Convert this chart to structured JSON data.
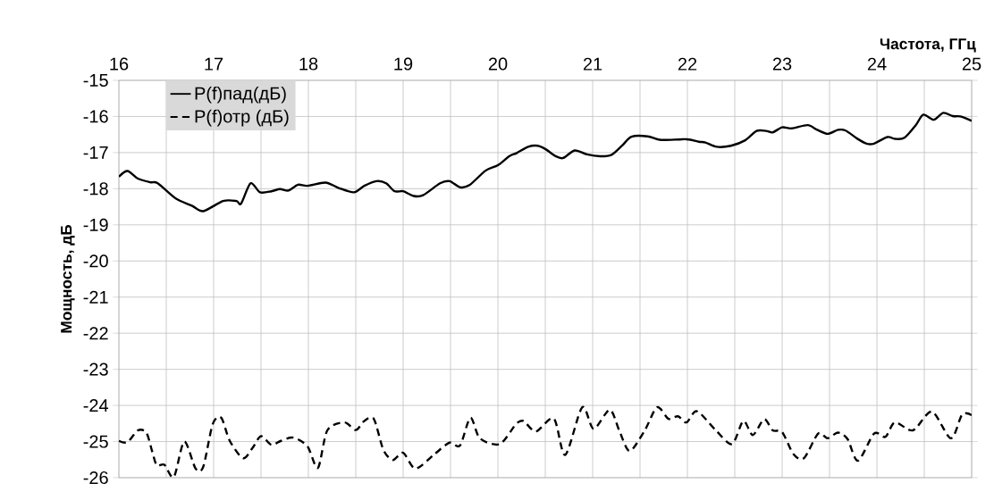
{
  "chart_data": {
    "type": "line",
    "xlabel": "Частота, ГГц",
    "ylabel": "Мощность, дБ",
    "xlim": [
      16,
      25
    ],
    "ylim": [
      -26,
      -15
    ],
    "xticks": [
      16,
      {
        "value": 16.5,
        "label": null
      },
      17,
      {
        "value": 17.5,
        "label": null
      },
      18,
      {
        "value": 18.5,
        "label": null
      },
      19,
      {
        "value": 19.5,
        "label": null
      },
      20,
      {
        "value": 20.5,
        "label": null
      },
      21,
      {
        "value": 21.5,
        "label": null
      },
      22,
      {
        "value": 22.5,
        "label": null
      },
      23,
      {
        "value": 23.5,
        "label": null
      },
      24,
      {
        "value": 24.5,
        "label": null
      },
      25
    ],
    "yticks": [
      -15,
      -16,
      -17,
      -18,
      -19,
      -20,
      -21,
      -22,
      -23,
      -24,
      -25,
      -26
    ],
    "grid": true,
    "legend": "top left",
    "series": [
      {
        "name": "P(f)пад(дБ)",
        "color": "#000000",
        "line_style": "solid",
        "x": [
          16.0,
          16.09,
          16.2,
          16.33,
          16.41,
          16.6,
          16.77,
          16.89,
          17.1,
          17.24,
          17.29,
          17.39,
          17.49,
          17.61,
          17.7,
          17.79,
          17.89,
          17.99,
          18.18,
          18.32,
          18.48,
          18.59,
          18.72,
          18.82,
          18.91,
          19.0,
          19.11,
          19.21,
          19.39,
          19.49,
          19.6,
          19.7,
          19.87,
          20.0,
          20.12,
          20.2,
          20.32,
          20.42,
          20.5,
          20.61,
          20.69,
          20.81,
          20.94,
          21.08,
          21.2,
          21.31,
          21.41,
          21.58,
          21.72,
          21.99,
          22.12,
          22.19,
          22.31,
          22.46,
          22.61,
          22.73,
          22.83,
          22.9,
          23.0,
          23.1,
          23.27,
          23.37,
          23.48,
          23.59,
          23.67,
          23.79,
          23.89,
          23.97,
          24.11,
          24.19,
          24.29,
          24.41,
          24.49,
          24.6,
          24.7,
          24.8,
          24.88,
          25.0
        ],
        "values": [
          -17.67,
          -17.51,
          -17.72,
          -17.82,
          -17.85,
          -18.27,
          -18.47,
          -18.62,
          -18.34,
          -18.34,
          -18.41,
          -17.85,
          -18.1,
          -18.07,
          -18.01,
          -18.05,
          -17.89,
          -17.92,
          -17.83,
          -17.98,
          -18.1,
          -17.92,
          -17.79,
          -17.85,
          -18.07,
          -18.07,
          -18.2,
          -18.18,
          -17.85,
          -17.79,
          -17.96,
          -17.9,
          -17.5,
          -17.35,
          -17.1,
          -17.01,
          -16.84,
          -16.81,
          -16.9,
          -17.1,
          -17.15,
          -16.94,
          -17.05,
          -17.1,
          -17.06,
          -16.81,
          -16.56,
          -16.55,
          -16.65,
          -16.63,
          -16.7,
          -16.72,
          -16.84,
          -16.81,
          -16.66,
          -16.4,
          -16.4,
          -16.44,
          -16.3,
          -16.33,
          -16.24,
          -16.37,
          -16.48,
          -16.37,
          -16.39,
          -16.61,
          -16.75,
          -16.75,
          -16.57,
          -16.62,
          -16.59,
          -16.24,
          -15.95,
          -16.09,
          -15.9,
          -15.99,
          -16.0,
          -16.12
        ]
      },
      {
        "name": "P(f)отр (дБ)",
        "color": "#000000",
        "line_style": "dashed",
        "x": [
          16.0,
          16.09,
          16.2,
          16.29,
          16.35,
          16.4,
          16.48,
          16.58,
          16.69,
          16.81,
          16.89,
          16.99,
          17.08,
          17.17,
          17.31,
          17.41,
          17.5,
          17.61,
          17.71,
          17.84,
          17.99,
          18.1,
          18.2,
          18.38,
          18.5,
          18.59,
          18.69,
          18.79,
          18.89,
          19.0,
          19.13,
          19.33,
          19.49,
          19.6,
          19.71,
          19.81,
          20.02,
          20.19,
          20.27,
          20.4,
          20.59,
          20.71,
          20.89,
          21.01,
          21.18,
          21.28,
          21.39,
          21.55,
          21.68,
          21.8,
          21.9,
          21.99,
          22.1,
          22.29,
          22.47,
          22.59,
          22.69,
          22.81,
          22.9,
          23.0,
          23.12,
          23.23,
          23.38,
          23.48,
          23.59,
          23.69,
          23.8,
          23.97,
          24.09,
          24.19,
          24.38,
          24.58,
          24.78,
          24.9,
          25.0
        ],
        "values": [
          -24.98,
          -25.02,
          -24.69,
          -24.75,
          -25.26,
          -25.66,
          -25.64,
          -25.98,
          -25.0,
          -25.75,
          -25.7,
          -24.52,
          -24.34,
          -24.98,
          -25.46,
          -25.18,
          -24.85,
          -25.09,
          -24.98,
          -24.89,
          -25.13,
          -25.73,
          -24.69,
          -24.47,
          -24.68,
          -24.43,
          -24.37,
          -25.22,
          -25.51,
          -25.31,
          -25.75,
          -25.35,
          -25.03,
          -25.11,
          -24.34,
          -24.91,
          -25.07,
          -24.52,
          -24.43,
          -24.72,
          -24.36,
          -25.37,
          -24.05,
          -24.65,
          -24.12,
          -24.69,
          -25.26,
          -24.69,
          -24.05,
          -24.37,
          -24.3,
          -24.47,
          -24.16,
          -24.66,
          -25.07,
          -24.43,
          -24.82,
          -24.38,
          -24.69,
          -24.74,
          -25.35,
          -25.46,
          -24.78,
          -24.91,
          -24.75,
          -24.93,
          -25.53,
          -24.78,
          -24.87,
          -24.47,
          -24.69,
          -24.17,
          -24.91,
          -24.25,
          -24.27
        ]
      }
    ]
  }
}
